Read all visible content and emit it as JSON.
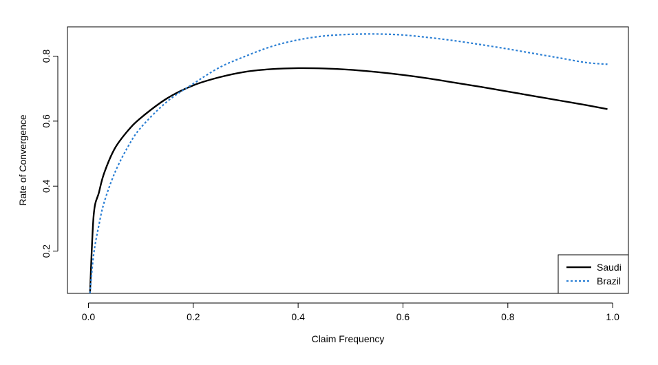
{
  "chart_data": {
    "type": "line",
    "title": "",
    "xlabel": "Claim Frequency",
    "ylabel": "Rate of Convergence",
    "xlim": [
      -0.04,
      1.03
    ],
    "ylim": [
      0.07,
      0.89
    ],
    "x_ticks": [
      0.0,
      0.2,
      0.4,
      0.6,
      0.8,
      1.0
    ],
    "x_tick_labels": [
      "0.0",
      "0.2",
      "0.4",
      "0.6",
      "0.8",
      "1.0"
    ],
    "y_ticks": [
      0.2,
      0.4,
      0.6,
      0.8
    ],
    "y_tick_labels": [
      "0.2",
      "0.4",
      "0.6",
      "0.8"
    ],
    "grid": false,
    "legend_position": "bottom-right",
    "x": [
      0.003,
      0.01,
      0.02,
      0.03,
      0.05,
      0.075,
      0.1,
      0.15,
      0.2,
      0.25,
      0.3,
      0.35,
      0.4,
      0.45,
      0.5,
      0.55,
      0.6,
      0.65,
      0.7,
      0.75,
      0.8,
      0.85,
      0.9,
      0.95,
      0.99
    ],
    "series": [
      {
        "name": "Saudi",
        "color": "#000000",
        "dash": "solid",
        "values": [
          0.07,
          0.31,
          0.38,
          0.44,
          0.515,
          0.57,
          0.61,
          0.67,
          0.71,
          0.735,
          0.752,
          0.76,
          0.763,
          0.762,
          0.758,
          0.751,
          0.742,
          0.731,
          0.718,
          0.705,
          0.691,
          0.677,
          0.663,
          0.649,
          0.637
        ]
      },
      {
        "name": "Brazil",
        "color": "#2b7fd4",
        "dash": "dotted",
        "values": [
          0.07,
          0.19,
          0.28,
          0.35,
          0.44,
          0.52,
          0.58,
          0.66,
          0.715,
          0.765,
          0.8,
          0.83,
          0.85,
          0.862,
          0.867,
          0.868,
          0.865,
          0.857,
          0.847,
          0.835,
          0.822,
          0.808,
          0.794,
          0.78,
          0.775
        ]
      }
    ]
  }
}
